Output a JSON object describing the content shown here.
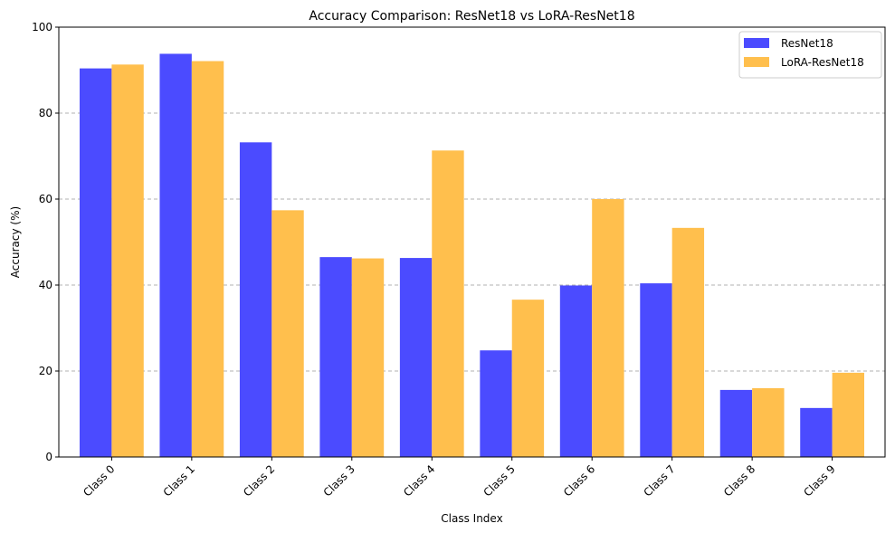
{
  "chart_data": {
    "type": "bar",
    "title": "Accuracy Comparison: ResNet18 vs LoRA-ResNet18",
    "xlabel": "Class Index",
    "ylabel": "Accuracy (%)",
    "ylim": [
      0,
      100
    ],
    "yticks": [
      0,
      20,
      40,
      60,
      80,
      100
    ],
    "grid": "y-dashed",
    "legend_position": "top-right",
    "categories": [
      "Class 0",
      "Class 1",
      "Class 2",
      "Class 3",
      "Class 4",
      "Class 5",
      "Class 6",
      "Class 7",
      "Class 8",
      "Class 9"
    ],
    "series": [
      {
        "name": "ResNet18",
        "color": "#4b4bff",
        "values": [
          90.4,
          93.8,
          73.2,
          46.5,
          46.3,
          24.8,
          39.9,
          40.4,
          15.6,
          11.4
        ]
      },
      {
        "name": "LoRA-ResNet18",
        "color": "#ffbf4d",
        "values": [
          91.3,
          92.1,
          57.4,
          46.2,
          71.3,
          36.6,
          60.0,
          53.3,
          16.0,
          19.6
        ]
      }
    ]
  }
}
